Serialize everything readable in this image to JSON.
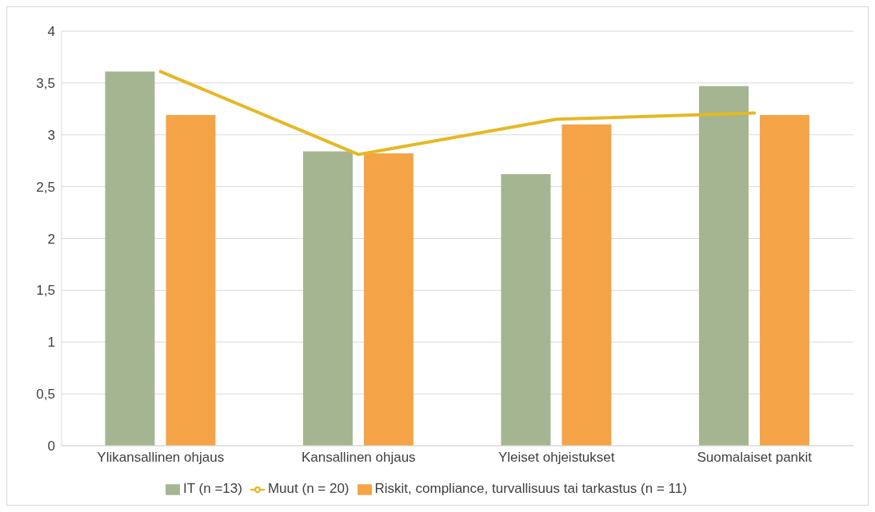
{
  "chart_data": {
    "type": "bar",
    "categories": [
      "Ylikansallinen ohjaus",
      "Kansallinen ohjaus",
      "Yleiset ohjeistukset",
      "Suomalaiset pankit"
    ],
    "series": [
      {
        "name": "IT (n =13)",
        "color": "#a5b592",
        "values": [
          3.61,
          2.84,
          2.62,
          3.47
        ]
      },
      {
        "name": "Riskit, compliance, turvallisuus tai tarkastus (n = 11)",
        "color": "#f4a447",
        "values": [
          3.19,
          2.82,
          3.1,
          3.19
        ]
      },
      {
        "name": "Muut (n = 20)",
        "type": "line",
        "color": "#e5b825",
        "values": [
          3.61,
          2.81,
          3.15,
          3.21
        ]
      }
    ],
    "ylim": [
      0,
      4
    ],
    "yticks": [
      0,
      {
        "value": 0.5,
        "label": "0,5"
      },
      1,
      {
        "value": 1.5,
        "label": "1,5"
      },
      2,
      {
        "value": 2.5,
        "label": "2,5"
      },
      3,
      {
        "value": 3.5,
        "label": "3,5"
      },
      4
    ],
    "grid": "y",
    "legend": "bottom",
    "marker": "none",
    "line_style": "solid"
  }
}
